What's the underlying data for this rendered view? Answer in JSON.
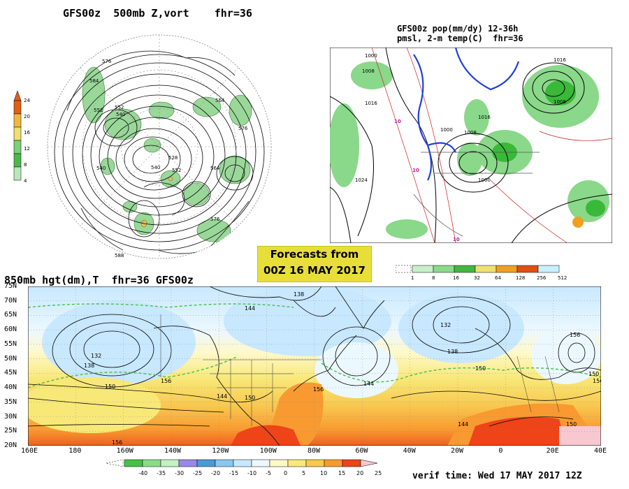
{
  "titles": {
    "panel1": "GFS00z  500mb Z,vort    fhr=36",
    "panel2_line1": "GFS00z pop(mm/dy) 12-36h",
    "panel2_line2": "pmsl, 2-m temp(C)  fhr=36",
    "panel3": "850mb hgt(dm),T  fhr=36 GFS00z"
  },
  "banner": {
    "line1": "Forecasts from",
    "line2": "00Z 16 MAY 2017"
  },
  "verif": "verif time: Wed 17 MAY 2017 12Z",
  "vort_legend": {
    "ticks": [
      "24",
      "20",
      "16",
      "12",
      "8",
      "4"
    ],
    "colors": [
      "#e06018",
      "#f0b840",
      "#f0e070",
      "#7cd07c",
      "#4cb84c",
      "#b8e8b8"
    ]
  },
  "pop_legend": {
    "ticks": [
      "1",
      "8",
      "16",
      "32",
      "64",
      "128",
      "256",
      "512"
    ],
    "colors": [
      "#c8f0c8",
      "#88dc88",
      "#40b840",
      "#f0e070",
      "#f0a020",
      "#e05010",
      "#c8f0ff"
    ]
  },
  "temp_legend": {
    "ticks": [
      "-40",
      "-35",
      "-30",
      "-25",
      "-20",
      "-15",
      "-10",
      "-5",
      "0",
      "5",
      "10",
      "15",
      "20",
      "25"
    ],
    "colors": [
      "#44c244",
      "#88dd88",
      "#c4f0c4",
      "#9a88e8",
      "#4a9ad8",
      "#88c8f0",
      "#c8e8ff",
      "#ecf8ff",
      "#fff8c8",
      "#f8e878",
      "#f8c850",
      "#f89a30",
      "#ee4418"
    ]
  },
  "lat_labels": [
    "75N",
    "70N",
    "65N",
    "60N",
    "55N",
    "50N",
    "45N",
    "40N",
    "35N",
    "30N",
    "25N",
    "20N"
  ],
  "lon_labels": [
    "160E",
    "180",
    "160W",
    "140W",
    "120W",
    "100W",
    "80W",
    "60W",
    "40W",
    "20W",
    "0",
    "20E",
    "40E"
  ],
  "panel1_contours": [
    "576",
    "584",
    "552",
    "540",
    "528",
    "552",
    "564",
    "576",
    "540",
    "564",
    "576",
    "588",
    "552",
    "540"
  ],
  "panel2_contours": [
    "1000",
    "1008",
    "1016",
    "1024",
    "10",
    "10",
    "10",
    "1016",
    "1000",
    "1008",
    "1016",
    "1000",
    "1008"
  ],
  "panel3_contours": [
    "138",
    "144",
    "132",
    "138",
    "150",
    "144",
    "156",
    "132",
    "138",
    "144",
    "150",
    "156",
    "150",
    "156",
    "150",
    "156",
    "144",
    "150",
    "156"
  ]
}
